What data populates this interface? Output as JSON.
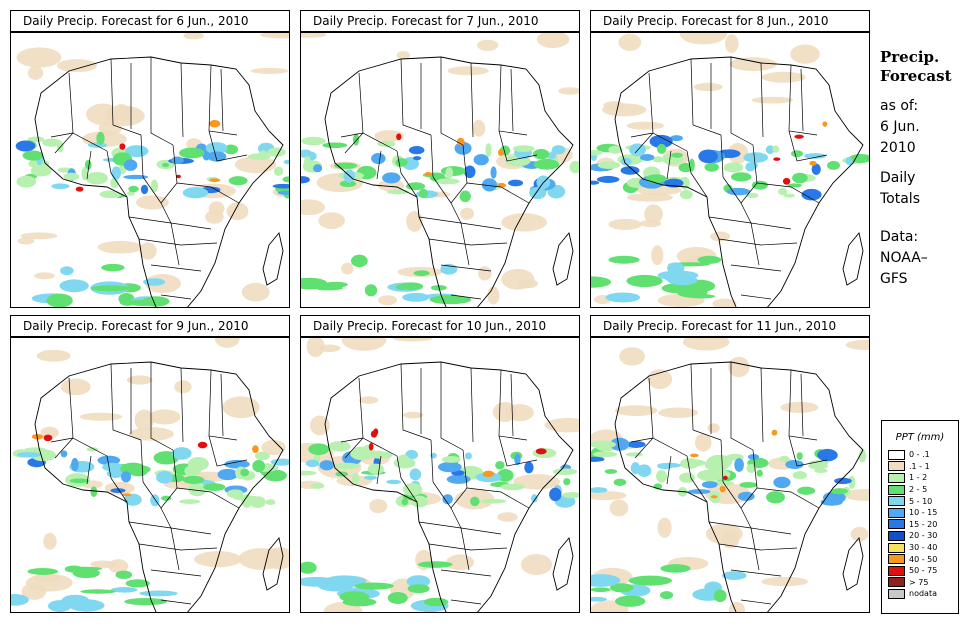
{
  "panels": [
    {
      "title": "Daily Precip. Forecast for  6 Jun., 2010"
    },
    {
      "title": "Daily Precip. Forecast for  7 Jun., 2010"
    },
    {
      "title": "Daily Precip. Forecast for  8 Jun., 2010"
    },
    {
      "title": "Daily Precip. Forecast for  9 Jun., 2010"
    },
    {
      "title": "Daily Precip. Forecast for  10 Jun., 2010"
    },
    {
      "title": "Daily Precip. Forecast for  11 Jun., 2010"
    }
  ],
  "sidebar": {
    "title_line1": "Precip.",
    "title_line2": "Forecast",
    "asof_label": "as of:",
    "asof_date1": "6 Jun.",
    "asof_date2": "2010",
    "totals1": "Daily",
    "totals2": "Totals",
    "data1": "Data:",
    "data2": "NOAA–",
    "data3": "GFS"
  },
  "legend": {
    "title": "PPT (mm)",
    "items": [
      {
        "label": "0 - .1",
        "color": "#ffffff"
      },
      {
        "label": ".1 - 1",
        "color": "#f0dcc0"
      },
      {
        "label": "1 - 2",
        "color": "#b8f0b0"
      },
      {
        "label": "2 - 5",
        "color": "#60e070"
      },
      {
        "label": "5 - 10",
        "color": "#80d8f0"
      },
      {
        "label": "10 - 15",
        "color": "#50a8f0"
      },
      {
        "label": "15 - 20",
        "color": "#2878e8"
      },
      {
        "label": "20 - 30",
        "color": "#1050c8"
      },
      {
        "label": "30 - 40",
        "color": "#f8e060"
      },
      {
        "label": "40 - 50",
        "color": "#f89820"
      },
      {
        "label": "50 - 75",
        "color": "#e01010"
      },
      {
        "label": "> 75",
        "color": "#902020"
      },
      {
        "label": "nodata",
        "color": "#c8c8c8"
      }
    ]
  }
}
